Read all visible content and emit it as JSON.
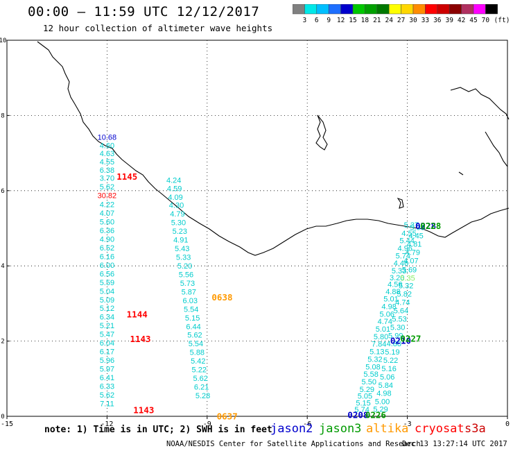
{
  "header": {
    "title": "00:00 – 11:59 UTC 12/12/2017",
    "subtitle": "12 hour collection of altimeter wave heights"
  },
  "colorbar": {
    "unit": "(ft)",
    "ticks": [
      "3",
      "6",
      "9",
      "12",
      "15",
      "18",
      "21",
      "24",
      "27",
      "30",
      "33",
      "36",
      "39",
      "42",
      "45",
      "70"
    ],
    "colors": [
      "#808080",
      "#00e8e8",
      "#00bfff",
      "#1e6fff",
      "#0000cd",
      "#00c800",
      "#00a000",
      "#007800",
      "#ffff00",
      "#ffd700",
      "#ff8c00",
      "#ff0000",
      "#cd0000",
      "#8b0000",
      "#b03060",
      "#ff00ff",
      "#000000"
    ]
  },
  "legend": {
    "note": "note: 1) Time is in UTC; 2) SWH is in feet",
    "items": [
      {
        "label": "jason2",
        "color": "#0000cd"
      },
      {
        "label": "jason3",
        "color": "#009a00"
      },
      {
        "label": "altika",
        "color": "#ff9900"
      },
      {
        "label": "cryosat",
        "color": "#ff0000"
      },
      {
        "label": "s3a",
        "color": "#cc0000"
      }
    ]
  },
  "footer": {
    "credit": "NOAA/NESDIS Center for Satellite Applications and Research",
    "generated": "Dec 13 13:27:14 UTC 2017"
  },
  "colors": {
    "jason2": "#0000cd",
    "jason3": "#009a00",
    "altika": "#ff9900",
    "cryosat": "#ff0000",
    "track": "#00cccc",
    "coast": "#000000",
    "grid": "#000000"
  },
  "chart_data": {
    "type": "scatter",
    "title": "00:00 – 11:59 UTC 12/12/2017",
    "xlabel": "",
    "ylabel": "",
    "xlim": [
      -15,
      0
    ],
    "ylim": [
      0,
      10
    ],
    "x_ticks": [
      "-15",
      "-12",
      "-9",
      "-6",
      "-3",
      "0"
    ],
    "y_ticks": [
      "0",
      "2",
      "4",
      "6",
      "8",
      "10"
    ],
    "grid": true,
    "unit": "ft",
    "series": [
      {
        "name": "cryosat track A",
        "color": "#00cccc",
        "points": [
          {
            "x": -12.0,
            "y": 7.35,
            "label": "10.68",
            "color": "#0000cd"
          },
          {
            "x": -12.0,
            "y": 7.13,
            "label": "4.60"
          },
          {
            "x": -12.0,
            "y": 6.92,
            "label": "4.63"
          },
          {
            "x": -12.0,
            "y": 6.7,
            "label": "4.55"
          },
          {
            "x": -12.0,
            "y": 6.48,
            "label": "6.38"
          },
          {
            "x": -12.0,
            "y": 6.26,
            "label": "3.70"
          },
          {
            "x": -12.0,
            "y": 6.03,
            "label": "5.62"
          },
          {
            "x": -12.0,
            "y": 5.8,
            "label": "30.82",
            "color": "#ff0000"
          },
          {
            "x": -12.0,
            "y": 5.56,
            "label": "4.22"
          },
          {
            "x": -12.0,
            "y": 5.33,
            "label": "4.07"
          },
          {
            "x": -12.0,
            "y": 5.1,
            "label": "5.60"
          },
          {
            "x": -12.0,
            "y": 4.87,
            "label": "6.36"
          },
          {
            "x": -12.0,
            "y": 4.64,
            "label": "4.90"
          },
          {
            "x": -12.0,
            "y": 4.41,
            "label": "6.52"
          },
          {
            "x": -12.0,
            "y": 4.18,
            "label": "6.16"
          },
          {
            "x": -12.0,
            "y": 3.95,
            "label": "6.00"
          },
          {
            "x": -12.0,
            "y": 3.72,
            "label": "6.56"
          },
          {
            "x": -12.0,
            "y": 3.49,
            "label": "5.59"
          },
          {
            "x": -12.0,
            "y": 3.26,
            "label": "5.04"
          },
          {
            "x": -12.0,
            "y": 3.03,
            "label": "5.09"
          },
          {
            "x": -12.0,
            "y": 2.8,
            "label": "5.12"
          },
          {
            "x": -12.0,
            "y": 2.57,
            "label": "6.34"
          },
          {
            "x": -12.0,
            "y": 2.34,
            "label": "5.21"
          },
          {
            "x": -12.0,
            "y": 2.11,
            "label": "5.47"
          },
          {
            "x": -12.0,
            "y": 1.88,
            "label": "6.04"
          },
          {
            "x": -12.0,
            "y": 1.65,
            "label": "6.17"
          },
          {
            "x": -12.0,
            "y": 1.42,
            "label": "5.96"
          },
          {
            "x": -12.0,
            "y": 1.19,
            "label": "5.97"
          },
          {
            "x": -12.0,
            "y": 0.96,
            "label": "6.41"
          },
          {
            "x": -12.0,
            "y": 0.73,
            "label": "6.33"
          },
          {
            "x": -12.0,
            "y": 0.5,
            "label": "5.62"
          },
          {
            "x": -12.0,
            "y": 0.27,
            "label": "7.11"
          }
        ]
      },
      {
        "name": "cryosat track B",
        "color": "#00cccc",
        "points": [
          {
            "x": -10.0,
            "y": 6.21,
            "label": "4.24"
          },
          {
            "x": -9.98,
            "y": 5.99,
            "label": "4.59"
          },
          {
            "x": -9.95,
            "y": 5.76,
            "label": "4.09"
          },
          {
            "x": -9.92,
            "y": 5.54,
            "label": "4.30"
          },
          {
            "x": -9.89,
            "y": 5.31,
            "label": "4.79"
          },
          {
            "x": -9.86,
            "y": 5.08,
            "label": "5.30"
          },
          {
            "x": -9.82,
            "y": 4.85,
            "label": "5.23"
          },
          {
            "x": -9.79,
            "y": 4.62,
            "label": "4.91"
          },
          {
            "x": -9.75,
            "y": 4.39,
            "label": "5.43"
          },
          {
            "x": -9.71,
            "y": 4.16,
            "label": "5.33"
          },
          {
            "x": -9.67,
            "y": 3.93,
            "label": "5.20"
          },
          {
            "x": -9.63,
            "y": 3.7,
            "label": "5.56"
          },
          {
            "x": -9.59,
            "y": 3.47,
            "label": "5.73"
          },
          {
            "x": -9.55,
            "y": 3.24,
            "label": "5.87"
          },
          {
            "x": -9.51,
            "y": 3.01,
            "label": "6.03"
          },
          {
            "x": -9.48,
            "y": 2.78,
            "label": "5.54"
          },
          {
            "x": -9.44,
            "y": 2.55,
            "label": "5.15"
          },
          {
            "x": -9.41,
            "y": 2.32,
            "label": "6.44"
          },
          {
            "x": -9.37,
            "y": 2.09,
            "label": "5.62"
          },
          {
            "x": -9.34,
            "y": 1.86,
            "label": "5.54"
          },
          {
            "x": -9.3,
            "y": 1.63,
            "label": "5.88"
          },
          {
            "x": -9.27,
            "y": 1.4,
            "label": "5.42"
          },
          {
            "x": -9.24,
            "y": 1.17,
            "label": "5.22"
          },
          {
            "x": -9.2,
            "y": 0.94,
            "label": "5.62"
          },
          {
            "x": -9.17,
            "y": 0.71,
            "label": "6.21"
          },
          {
            "x": -9.13,
            "y": 0.48,
            "label": "5.28"
          }
        ]
      },
      {
        "name": "altika track",
        "color": "#00cccc",
        "points": [
          {
            "x": -2.88,
            "y": 5.02,
            "label": "5.37"
          },
          {
            "x": -2.95,
            "y": 4.8,
            "label": "4.55"
          },
          {
            "x": -3.01,
            "y": 4.6,
            "label": "5.44"
          },
          {
            "x": -3.07,
            "y": 4.4,
            "label": "4.96"
          },
          {
            "x": -3.13,
            "y": 4.2,
            "label": "5.74"
          },
          {
            "x": -3.19,
            "y": 4.0,
            "label": "4.46"
          },
          {
            "x": -3.25,
            "y": 3.8,
            "label": "5.33"
          },
          {
            "x": -3.31,
            "y": 3.62,
            "label": "3.20"
          },
          {
            "x": -3.37,
            "y": 3.44,
            "label": "4.56"
          },
          {
            "x": -3.43,
            "y": 3.25,
            "label": "4.88"
          },
          {
            "x": -3.49,
            "y": 3.05,
            "label": "5.01"
          },
          {
            "x": -3.55,
            "y": 2.85,
            "label": "4.98"
          },
          {
            "x": -3.61,
            "y": 2.65,
            "label": "5.06"
          },
          {
            "x": -3.67,
            "y": 2.45,
            "label": "4.74"
          },
          {
            "x": -3.73,
            "y": 2.25,
            "label": "5.01"
          },
          {
            "x": -3.79,
            "y": 2.05,
            "label": "5.80"
          },
          {
            "x": -3.85,
            "y": 1.85,
            "label": "7.84"
          },
          {
            "x": -3.91,
            "y": 1.65,
            "label": "5.13"
          },
          {
            "x": -3.97,
            "y": 1.45,
            "label": "5.32"
          },
          {
            "x": -4.03,
            "y": 1.25,
            "label": "5.08"
          },
          {
            "x": -4.09,
            "y": 1.05,
            "label": "5.58"
          },
          {
            "x": -4.15,
            "y": 0.85,
            "label": "5.50"
          },
          {
            "x": -4.21,
            "y": 0.65,
            "label": "5.29"
          },
          {
            "x": -4.27,
            "y": 0.47,
            "label": "5.05"
          },
          {
            "x": -4.32,
            "y": 0.29,
            "label": "5.15"
          },
          {
            "x": -4.36,
            "y": 0.11,
            "label": "5.74"
          }
        ]
      },
      {
        "name": "altika track B",
        "color": "#00cccc",
        "points": [
          {
            "x": -2.7,
            "y": 4.95,
            "label": "5.08"
          },
          {
            "x": -2.74,
            "y": 4.73,
            "label": "4.45"
          },
          {
            "x": -2.79,
            "y": 4.51,
            "label": "4.81"
          },
          {
            "x": -2.84,
            "y": 4.29,
            "label": "4.79"
          },
          {
            "x": -2.89,
            "y": 4.07,
            "label": "4.07"
          },
          {
            "x": -2.94,
            "y": 3.83,
            "label": "5.69"
          },
          {
            "x": -2.99,
            "y": 3.61,
            "label": "5.35",
            "color": "#88ee66"
          },
          {
            "x": -3.04,
            "y": 3.4,
            "label": "5.32"
          },
          {
            "x": -3.09,
            "y": 3.18,
            "label": "5.82"
          },
          {
            "x": -3.14,
            "y": 2.96,
            "label": "4.74"
          },
          {
            "x": -3.19,
            "y": 2.74,
            "label": "5.64"
          },
          {
            "x": -3.24,
            "y": 2.52,
            "label": "5.53"
          },
          {
            "x": -3.29,
            "y": 2.3,
            "label": "5.30"
          },
          {
            "x": -3.35,
            "y": 2.08,
            "label": "5.99"
          },
          {
            "x": -3.4,
            "y": 1.86,
            "label": "4.88"
          },
          {
            "x": -3.45,
            "y": 1.64,
            "label": "5.19"
          },
          {
            "x": -3.5,
            "y": 1.42,
            "label": "5.22"
          },
          {
            "x": -3.55,
            "y": 1.2,
            "label": "5.16"
          },
          {
            "x": -3.6,
            "y": 0.98,
            "label": "5.06"
          },
          {
            "x": -3.65,
            "y": 0.76,
            "label": "5.84"
          },
          {
            "x": -3.7,
            "y": 0.54,
            "label": "4.98"
          },
          {
            "x": -3.75,
            "y": 0.32,
            "label": "5.00"
          },
          {
            "x": -3.8,
            "y": 0.12,
            "label": "5.29"
          }
        ]
      }
    ],
    "annotations": [
      {
        "text": "1145",
        "x": -11.4,
        "y": 6.29,
        "color": "#ff0000"
      },
      {
        "text": "1144",
        "x": -11.1,
        "y": 2.63,
        "color": "#ff0000"
      },
      {
        "text": "1143",
        "x": -11.0,
        "y": 1.97,
        "color": "#ff0000"
      },
      {
        "text": "1143",
        "x": -10.9,
        "y": 0.08,
        "color": "#ff0000"
      },
      {
        "text": "0638",
        "x": -8.55,
        "y": 3.08,
        "color": "#ff9900"
      },
      {
        "text": "0637",
        "x": -8.4,
        "y": -0.08,
        "color": "#ff9900"
      },
      {
        "text": "0228",
        "x": -2.45,
        "y": 4.98,
        "color": "#0000cd"
      },
      {
        "text": "0228",
        "x": -2.3,
        "y": 4.98,
        "color": "#009a00"
      },
      {
        "text": "0210",
        "x": -3.2,
        "y": 1.93,
        "color": "#0000cd"
      },
      {
        "text": "0227",
        "x": -2.9,
        "y": 1.98,
        "color": "#009a00"
      },
      {
        "text": "0208",
        "x": -4.48,
        "y": -0.05,
        "color": "#0000cd"
      },
      {
        "text": "0226",
        "x": -3.95,
        "y": -0.05,
        "color": "#009a00"
      }
    ]
  }
}
